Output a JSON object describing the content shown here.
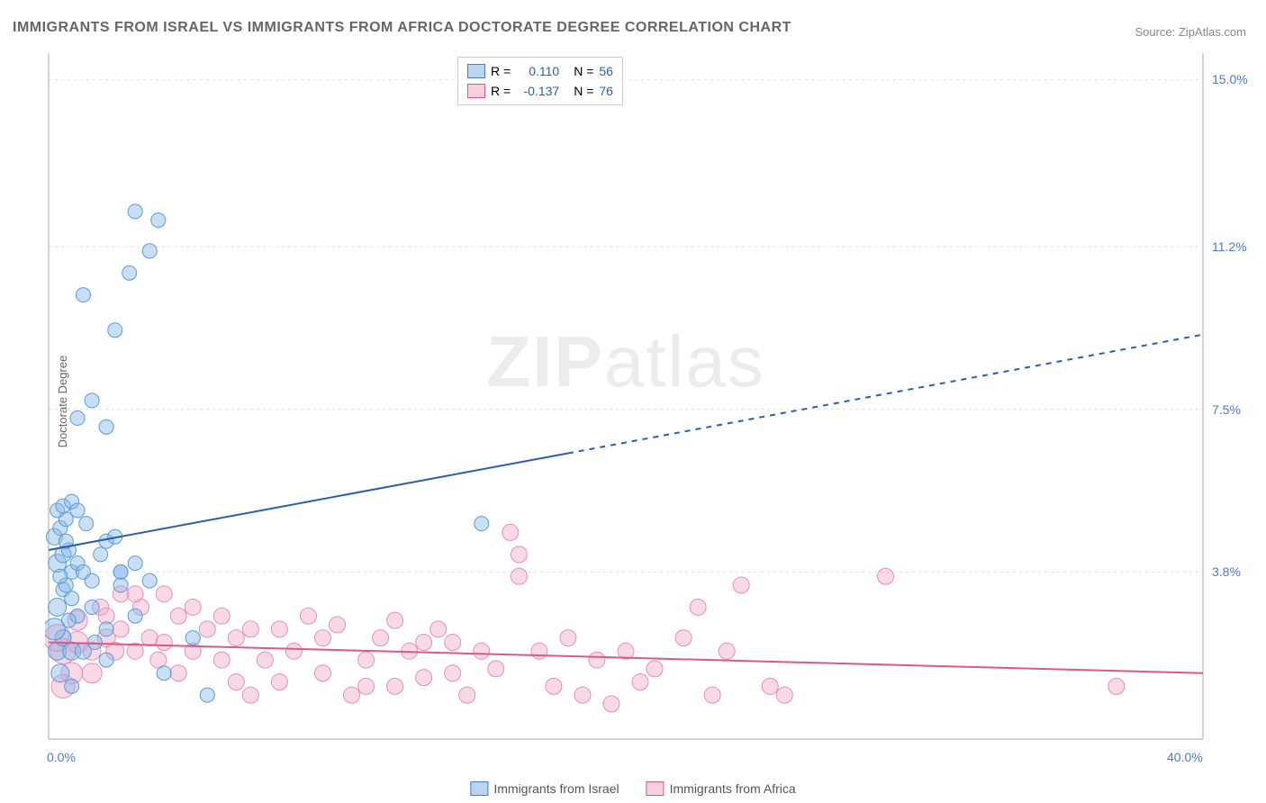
{
  "title": "IMMIGRANTS FROM ISRAEL VS IMMIGRANTS FROM AFRICA DOCTORATE DEGREE CORRELATION CHART",
  "source_prefix": "Source: ",
  "source_name": "ZipAtlas.com",
  "ylabel": "Doctorate Degree",
  "watermark_bold": "ZIP",
  "watermark_rest": "atlas",
  "chart": {
    "type": "scatter",
    "background_color": "#ffffff",
    "grid_color": "#e0e0e0",
    "plot_border_color": "#cccccc",
    "x_range": [
      0.0,
      40.0
    ],
    "y_range": [
      0.0,
      15.6
    ],
    "x_ticks": [
      {
        "value": 0.0,
        "label": "0.0%"
      },
      {
        "value": 40.0,
        "label": "40.0%"
      }
    ],
    "y_ticks": [
      {
        "value": 3.8,
        "label": "3.8%"
      },
      {
        "value": 7.5,
        "label": "7.5%"
      },
      {
        "value": 11.2,
        "label": "11.2%"
      },
      {
        "value": 15.0,
        "label": "15.0%"
      }
    ],
    "grid_y_lines": [
      0.0,
      3.8,
      7.5,
      11.2,
      15.0
    ],
    "series": [
      {
        "key": "israel",
        "label": "Immigrants from Israel",
        "color_fill": "rgba(135,185,235,0.45)",
        "color_stroke": "#5d9bd5",
        "trend_color": "#2c5fa8",
        "marker_r": 8,
        "R_label": "R =",
        "R_value": "0.110",
        "N_label": "N =",
        "N_value": "56",
        "trend": {
          "x1": 0,
          "y1": 4.3,
          "x2_solid": 18,
          "y2_solid": 6.5,
          "x2": 40,
          "y2": 9.2
        },
        "points": [
          {
            "x": 0.3,
            "y": 2.0,
            "r": 10
          },
          {
            "x": 0.5,
            "y": 2.3,
            "r": 9
          },
          {
            "x": 0.2,
            "y": 2.5,
            "r": 12
          },
          {
            "x": 0.3,
            "y": 3.0,
            "r": 10
          },
          {
            "x": 0.5,
            "y": 3.4,
            "r": 8
          },
          {
            "x": 0.6,
            "y": 3.5,
            "r": 8
          },
          {
            "x": 0.8,
            "y": 3.8,
            "r": 8
          },
          {
            "x": 0.3,
            "y": 4.0,
            "r": 10
          },
          {
            "x": 0.5,
            "y": 4.2,
            "r": 9
          },
          {
            "x": 0.7,
            "y": 4.3,
            "r": 8
          },
          {
            "x": 1.0,
            "y": 4.0,
            "r": 8
          },
          {
            "x": 1.2,
            "y": 3.8,
            "r": 8
          },
          {
            "x": 0.2,
            "y": 4.6,
            "r": 9
          },
          {
            "x": 0.4,
            "y": 4.8,
            "r": 8
          },
          {
            "x": 0.6,
            "y": 5.0,
            "r": 8
          },
          {
            "x": 0.3,
            "y": 5.2,
            "r": 8
          },
          {
            "x": 0.5,
            "y": 5.3,
            "r": 8
          },
          {
            "x": 0.8,
            "y": 5.4,
            "r": 8
          },
          {
            "x": 1.0,
            "y": 5.2,
            "r": 8
          },
          {
            "x": 2.0,
            "y": 4.5,
            "r": 8
          },
          {
            "x": 3.0,
            "y": 4.0,
            "r": 8
          },
          {
            "x": 2.5,
            "y": 3.8,
            "r": 8
          },
          {
            "x": 2.5,
            "y": 3.8,
            "r": 8
          },
          {
            "x": 1.5,
            "y": 3.0,
            "r": 8
          },
          {
            "x": 2.0,
            "y": 2.5,
            "r": 8
          },
          {
            "x": 2.5,
            "y": 3.5,
            "r": 8
          },
          {
            "x": 3.0,
            "y": 2.8,
            "r": 8
          },
          {
            "x": 3.5,
            "y": 3.6,
            "r": 8
          },
          {
            "x": 4.0,
            "y": 1.5,
            "r": 8
          },
          {
            "x": 5.0,
            "y": 2.3,
            "r": 8
          },
          {
            "x": 5.5,
            "y": 1.0,
            "r": 8
          },
          {
            "x": 1.0,
            "y": 7.3,
            "r": 8
          },
          {
            "x": 2.0,
            "y": 7.1,
            "r": 8
          },
          {
            "x": 1.5,
            "y": 7.7,
            "r": 8
          },
          {
            "x": 2.3,
            "y": 9.3,
            "r": 8
          },
          {
            "x": 1.2,
            "y": 10.1,
            "r": 8
          },
          {
            "x": 2.8,
            "y": 10.6,
            "r": 8
          },
          {
            "x": 3.5,
            "y": 11.1,
            "r": 8
          },
          {
            "x": 3.8,
            "y": 11.8,
            "r": 8
          },
          {
            "x": 3.0,
            "y": 12.0,
            "r": 8
          },
          {
            "x": 15.0,
            "y": 4.9,
            "r": 8
          },
          {
            "x": 0.8,
            "y": 2.0,
            "r": 10
          },
          {
            "x": 1.2,
            "y": 2.0,
            "r": 9
          },
          {
            "x": 0.4,
            "y": 1.5,
            "r": 10
          },
          {
            "x": 1.8,
            "y": 4.2,
            "r": 8
          },
          {
            "x": 2.3,
            "y": 4.6,
            "r": 8
          },
          {
            "x": 1.0,
            "y": 2.8,
            "r": 8
          },
          {
            "x": 0.8,
            "y": 3.2,
            "r": 8
          },
          {
            "x": 0.8,
            "y": 1.2,
            "r": 8
          },
          {
            "x": 2.0,
            "y": 1.8,
            "r": 8
          },
          {
            "x": 1.6,
            "y": 2.2,
            "r": 8
          },
          {
            "x": 1.5,
            "y": 3.6,
            "r": 8
          },
          {
            "x": 0.6,
            "y": 4.5,
            "r": 8
          },
          {
            "x": 0.4,
            "y": 3.7,
            "r": 8
          },
          {
            "x": 0.7,
            "y": 2.7,
            "r": 8
          },
          {
            "x": 1.3,
            "y": 4.9,
            "r": 8
          }
        ]
      },
      {
        "key": "africa",
        "label": "Immigrants from Africa",
        "color_fill": "rgba(245,170,200,0.45)",
        "color_stroke": "#e590b5",
        "trend_color": "#d85a8a",
        "marker_r": 8,
        "R_label": "R =",
        "R_value": "-0.137",
        "N_label": "N =",
        "N_value": "76",
        "trend": {
          "x1": 0,
          "y1": 2.2,
          "x2_solid": 40,
          "y2_solid": 1.5,
          "x2": 40,
          "y2": 1.5
        },
        "points": [
          {
            "x": 0.5,
            "y": 2.0,
            "r": 14
          },
          {
            "x": 1.0,
            "y": 2.2,
            "r": 12
          },
          {
            "x": 0.3,
            "y": 2.3,
            "r": 15
          },
          {
            "x": 0.8,
            "y": 1.5,
            "r": 12
          },
          {
            "x": 1.5,
            "y": 2.0,
            "r": 10
          },
          {
            "x": 2.0,
            "y": 2.3,
            "r": 10
          },
          {
            "x": 1.0,
            "y": 2.7,
            "r": 11
          },
          {
            "x": 2.5,
            "y": 2.5,
            "r": 9
          },
          {
            "x": 3.0,
            "y": 2.0,
            "r": 9
          },
          {
            "x": 3.5,
            "y": 2.3,
            "r": 9
          },
          {
            "x": 4.0,
            "y": 2.2,
            "r": 9
          },
          {
            "x": 3.2,
            "y": 3.0,
            "r": 9
          },
          {
            "x": 4.5,
            "y": 2.8,
            "r": 9
          },
          {
            "x": 5.0,
            "y": 2.0,
            "r": 9
          },
          {
            "x": 5.5,
            "y": 2.5,
            "r": 9
          },
          {
            "x": 4.5,
            "y": 1.5,
            "r": 9
          },
          {
            "x": 6.0,
            "y": 1.8,
            "r": 9
          },
          {
            "x": 6.5,
            "y": 2.3,
            "r": 9
          },
          {
            "x": 7.0,
            "y": 1.0,
            "r": 9
          },
          {
            "x": 7.5,
            "y": 1.8,
            "r": 9
          },
          {
            "x": 8.0,
            "y": 1.3,
            "r": 9
          },
          {
            "x": 8.5,
            "y": 2.0,
            "r": 9
          },
          {
            "x": 9.0,
            "y": 2.8,
            "r": 9
          },
          {
            "x": 9.5,
            "y": 1.5,
            "r": 9
          },
          {
            "x": 10.0,
            "y": 2.6,
            "r": 9
          },
          {
            "x": 10.5,
            "y": 1.0,
            "r": 9
          },
          {
            "x": 11.0,
            "y": 1.8,
            "r": 9
          },
          {
            "x": 11.5,
            "y": 2.3,
            "r": 9
          },
          {
            "x": 12.0,
            "y": 1.2,
            "r": 9
          },
          {
            "x": 12.5,
            "y": 2.0,
            "r": 9
          },
          {
            "x": 13.0,
            "y": 1.4,
            "r": 9
          },
          {
            "x": 13.5,
            "y": 2.5,
            "r": 9
          },
          {
            "x": 14.0,
            "y": 2.2,
            "r": 9
          },
          {
            "x": 14.5,
            "y": 1.0,
            "r": 9
          },
          {
            "x": 15.0,
            "y": 2.0,
            "r": 9
          },
          {
            "x": 15.5,
            "y": 1.6,
            "r": 9
          },
          {
            "x": 16.0,
            "y": 4.7,
            "r": 9
          },
          {
            "x": 16.3,
            "y": 3.7,
            "r": 9
          },
          {
            "x": 16.3,
            "y": 4.2,
            "r": 9
          },
          {
            "x": 17.0,
            "y": 2.0,
            "r": 9
          },
          {
            "x": 17.5,
            "y": 1.2,
            "r": 9
          },
          {
            "x": 18.0,
            "y": 2.3,
            "r": 9
          },
          {
            "x": 18.5,
            "y": 1.0,
            "r": 9
          },
          {
            "x": 19.0,
            "y": 1.8,
            "r": 9
          },
          {
            "x": 19.5,
            "y": 0.8,
            "r": 9
          },
          {
            "x": 20.0,
            "y": 2.0,
            "r": 9
          },
          {
            "x": 20.5,
            "y": 1.3,
            "r": 9
          },
          {
            "x": 21.0,
            "y": 1.6,
            "r": 9
          },
          {
            "x": 22.0,
            "y": 2.3,
            "r": 9
          },
          {
            "x": 22.5,
            "y": 3.0,
            "r": 9
          },
          {
            "x": 23.0,
            "y": 1.0,
            "r": 9
          },
          {
            "x": 23.5,
            "y": 2.0,
            "r": 9
          },
          {
            "x": 24.0,
            "y": 3.5,
            "r": 9
          },
          {
            "x": 25.0,
            "y": 1.2,
            "r": 9
          },
          {
            "x": 25.5,
            "y": 1.0,
            "r": 9
          },
          {
            "x": 29.0,
            "y": 3.7,
            "r": 9
          },
          {
            "x": 37.0,
            "y": 1.2,
            "r": 9
          },
          {
            "x": 2.5,
            "y": 3.3,
            "r": 9
          },
          {
            "x": 3.0,
            "y": 3.3,
            "r": 9
          },
          {
            "x": 1.8,
            "y": 3.0,
            "r": 9
          },
          {
            "x": 2.3,
            "y": 2.0,
            "r": 10
          },
          {
            "x": 1.5,
            "y": 1.5,
            "r": 11
          },
          {
            "x": 0.5,
            "y": 1.2,
            "r": 13
          },
          {
            "x": 2.0,
            "y": 2.8,
            "r": 9
          },
          {
            "x": 6.0,
            "y": 2.8,
            "r": 9
          },
          {
            "x": 7.0,
            "y": 2.5,
            "r": 9
          },
          {
            "x": 12.0,
            "y": 2.7,
            "r": 9
          },
          {
            "x": 5.0,
            "y": 3.0,
            "r": 9
          },
          {
            "x": 4.0,
            "y": 3.3,
            "r": 9
          },
          {
            "x": 11.0,
            "y": 1.2,
            "r": 9
          },
          {
            "x": 13.0,
            "y": 2.2,
            "r": 9
          },
          {
            "x": 14.0,
            "y": 1.5,
            "r": 9
          },
          {
            "x": 8.0,
            "y": 2.5,
            "r": 9
          },
          {
            "x": 3.8,
            "y": 1.8,
            "r": 9
          },
          {
            "x": 6.5,
            "y": 1.3,
            "r": 9
          },
          {
            "x": 9.5,
            "y": 2.3,
            "r": 9
          }
        ]
      }
    ],
    "tick_fontsize": 14,
    "tick_color": "#4a7ac7",
    "title_color": "#666666",
    "title_fontsize": 16
  }
}
